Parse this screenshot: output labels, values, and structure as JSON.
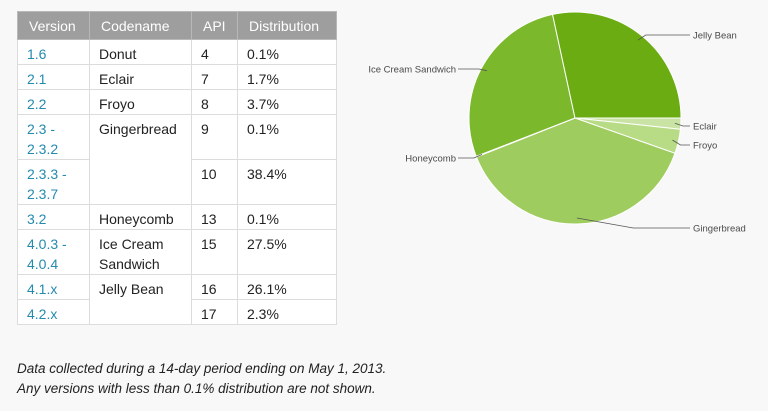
{
  "table": {
    "headers": [
      "Version",
      "Codename",
      "API",
      "Distribution"
    ],
    "rows": [
      {
        "version": "1.6",
        "codename": "Donut",
        "api": "4",
        "distribution": "0.1%"
      },
      {
        "version": "2.1",
        "codename": "Eclair",
        "api": "7",
        "distribution": "1.7%"
      },
      {
        "version": "2.2",
        "codename": "Froyo",
        "api": "8",
        "distribution": "3.7%"
      },
      {
        "version": "2.3 - 2.3.2",
        "codename": "Gingerbread",
        "api": "9",
        "distribution": "0.1%"
      },
      {
        "version": "2.3.3 - 2.3.7",
        "codename": "",
        "api": "10",
        "distribution": "38.4%"
      },
      {
        "version": "3.2",
        "codename": "Honeycomb",
        "api": "13",
        "distribution": "0.1%"
      },
      {
        "version": "4.0.3 - 4.0.4",
        "codename": "Ice Cream Sandwich",
        "api": "15",
        "distribution": "27.5%"
      },
      {
        "version": "4.1.x",
        "codename": "Jelly Bean",
        "api": "16",
        "distribution": "26.1%"
      },
      {
        "version": "4.2.x",
        "codename": "",
        "api": "17",
        "distribution": "2.3%"
      }
    ]
  },
  "caption": {
    "line1": "Data collected during a 14-day period ending on May 1, 2013.",
    "line2": "Any versions with less than 0.1% distribution are not shown."
  },
  "chart_data": {
    "type": "pie",
    "title": "",
    "slices": [
      {
        "label": "Eclair",
        "value": 1.7,
        "color": "#c9e3a4"
      },
      {
        "label": "Froyo",
        "value": 3.7,
        "color": "#b8dc86"
      },
      {
        "label": "Gingerbread",
        "value": 38.6,
        "color": "#9fcc5f"
      },
      {
        "label": "Honeycomb",
        "value": 0.1,
        "color": "#8cc243"
      },
      {
        "label": "Ice Cream Sandwich",
        "value": 27.5,
        "color": "#7bb82b"
      },
      {
        "label": "Jelly Bean",
        "value": 28.4,
        "color": "#6aac12"
      }
    ],
    "start_angle_deg": 0,
    "direction": "clockwise-from-right",
    "colors": {
      "stroke": "#ffffff",
      "label": "#4a4a4a"
    }
  }
}
